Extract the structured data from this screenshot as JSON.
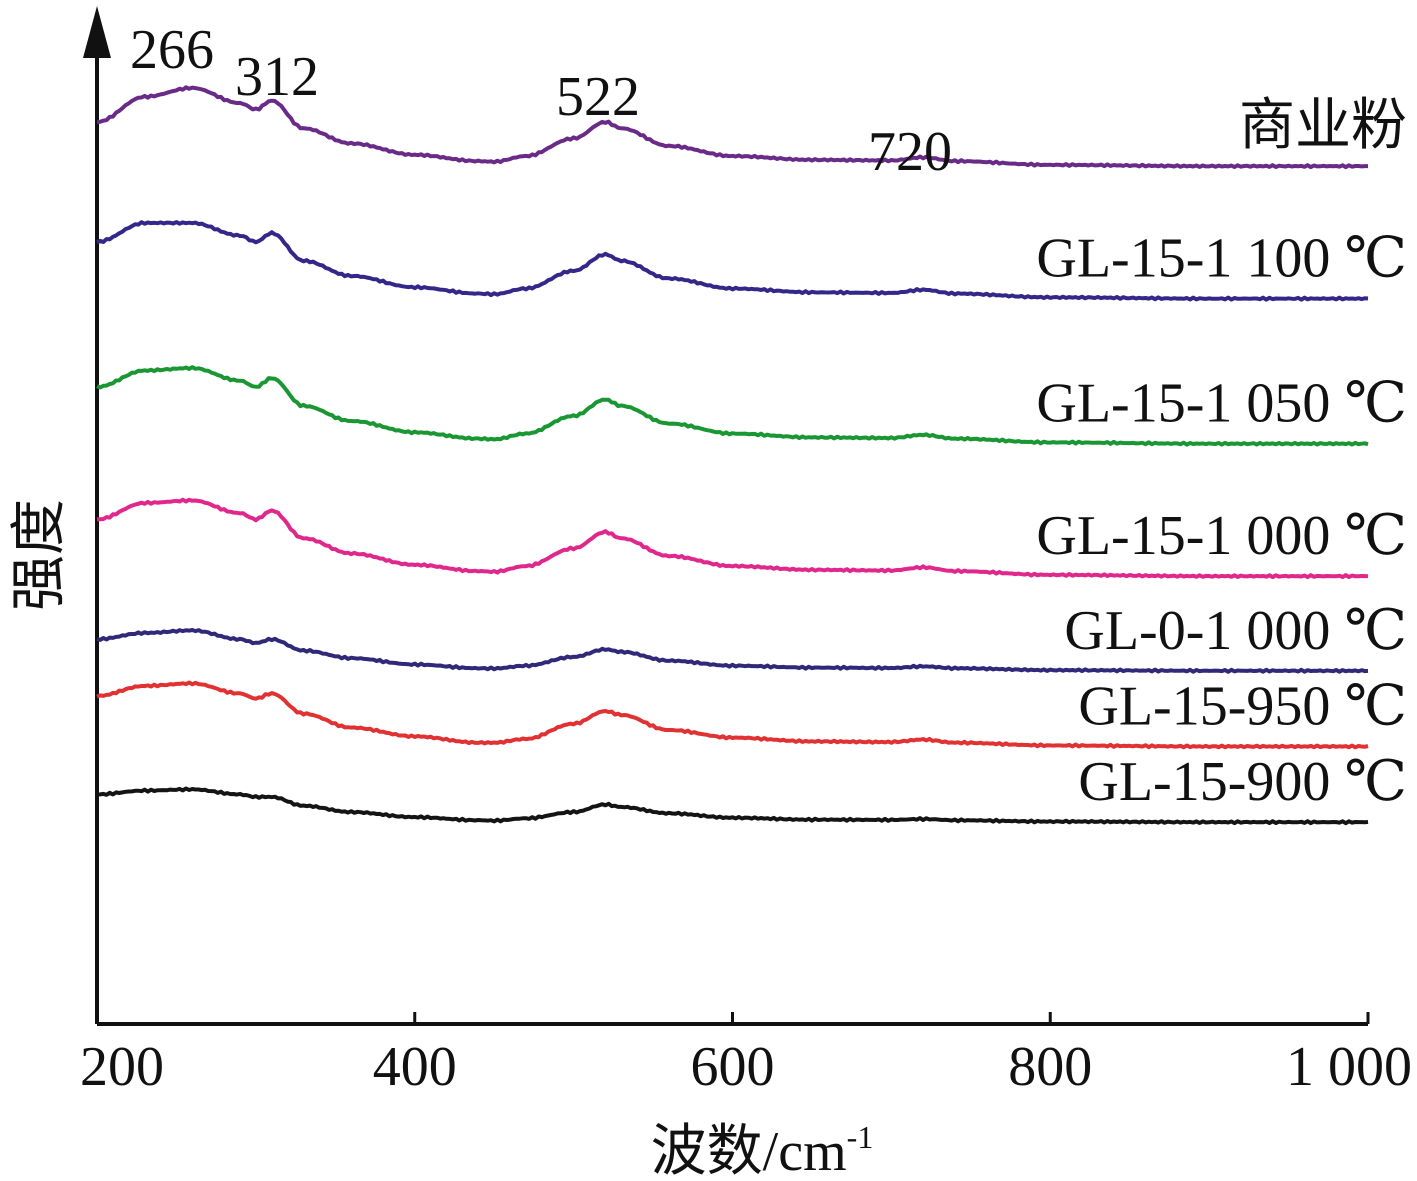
{
  "chart_data": {
    "type": "line",
    "title": "",
    "xlabel": "波数/cm",
    "xlabel_superscript": "-1",
    "ylabel": "强度",
    "xlim": [
      200,
      1000
    ],
    "x_ticks": [
      200,
      400,
      600,
      800,
      1000
    ],
    "x_tick_labels": [
      "200",
      "400",
      "600",
      "800",
      "1 000"
    ],
    "y_ticks_shown": false,
    "grid": false,
    "legend": "labels placed at right end of each stacked curve",
    "peak_annotations": [
      {
        "x": 266,
        "label": "266"
      },
      {
        "x": 312,
        "label": "312"
      },
      {
        "x": 522,
        "label": "522"
      },
      {
        "x": 720,
        "label": "720"
      }
    ],
    "series": [
      {
        "name": "商业粉",
        "color": "#6a2a88",
        "baseline": 6.8,
        "points": [
          [
            200,
            0.35
          ],
          [
            230,
            0.55
          ],
          [
            260,
            0.62
          ],
          [
            290,
            0.5
          ],
          [
            300,
            0.45
          ],
          [
            310,
            0.52
          ],
          [
            330,
            0.3
          ],
          [
            360,
            0.18
          ],
          [
            400,
            0.09
          ],
          [
            440,
            0.04
          ],
          [
            450,
            0.035
          ],
          [
            470,
            0.08
          ],
          [
            500,
            0.22
          ],
          [
            520,
            0.35
          ],
          [
            530,
            0.3
          ],
          [
            560,
            0.16
          ],
          [
            600,
            0.08
          ],
          [
            650,
            0.05
          ],
          [
            700,
            0.045
          ],
          [
            720,
            0.07
          ],
          [
            740,
            0.04
          ],
          [
            800,
            0.01
          ],
          [
            900,
            0.0
          ],
          [
            1000,
            0.0
          ]
        ]
      },
      {
        "name": "GL-15-1 100 ℃",
        "color": "#33288a",
        "baseline": 5.75,
        "points": [
          [
            200,
            0.45
          ],
          [
            230,
            0.6
          ],
          [
            260,
            0.6
          ],
          [
            290,
            0.5
          ],
          [
            300,
            0.45
          ],
          [
            310,
            0.52
          ],
          [
            330,
            0.3
          ],
          [
            360,
            0.18
          ],
          [
            400,
            0.09
          ],
          [
            440,
            0.04
          ],
          [
            450,
            0.035
          ],
          [
            470,
            0.08
          ],
          [
            500,
            0.22
          ],
          [
            520,
            0.35
          ],
          [
            530,
            0.3
          ],
          [
            560,
            0.16
          ],
          [
            600,
            0.08
          ],
          [
            650,
            0.05
          ],
          [
            700,
            0.045
          ],
          [
            720,
            0.07
          ],
          [
            740,
            0.04
          ],
          [
            800,
            0.01
          ],
          [
            900,
            0.0
          ],
          [
            1000,
            0.0
          ]
        ]
      },
      {
        "name": "GL-15-1 050 ℃",
        "color": "#1a9632",
        "baseline": 4.6,
        "points": [
          [
            200,
            0.45
          ],
          [
            230,
            0.58
          ],
          [
            260,
            0.6
          ],
          [
            290,
            0.5
          ],
          [
            300,
            0.45
          ],
          [
            310,
            0.52
          ],
          [
            330,
            0.3
          ],
          [
            360,
            0.18
          ],
          [
            400,
            0.09
          ],
          [
            440,
            0.04
          ],
          [
            450,
            0.035
          ],
          [
            470,
            0.08
          ],
          [
            500,
            0.22
          ],
          [
            520,
            0.35
          ],
          [
            530,
            0.3
          ],
          [
            560,
            0.16
          ],
          [
            600,
            0.08
          ],
          [
            650,
            0.05
          ],
          [
            700,
            0.045
          ],
          [
            720,
            0.07
          ],
          [
            740,
            0.04
          ],
          [
            800,
            0.01
          ],
          [
            900,
            0.0
          ],
          [
            1000,
            0.0
          ]
        ]
      },
      {
        "name": "GL-15-1 000 ℃",
        "color": "#e0288c",
        "baseline": 3.55,
        "points": [
          [
            200,
            0.45
          ],
          [
            230,
            0.58
          ],
          [
            260,
            0.6
          ],
          [
            290,
            0.5
          ],
          [
            300,
            0.45
          ],
          [
            310,
            0.52
          ],
          [
            330,
            0.3
          ],
          [
            360,
            0.18
          ],
          [
            400,
            0.09
          ],
          [
            440,
            0.04
          ],
          [
            450,
            0.035
          ],
          [
            470,
            0.08
          ],
          [
            500,
            0.22
          ],
          [
            520,
            0.35
          ],
          [
            530,
            0.3
          ],
          [
            560,
            0.16
          ],
          [
            600,
            0.08
          ],
          [
            650,
            0.05
          ],
          [
            700,
            0.045
          ],
          [
            720,
            0.07
          ],
          [
            740,
            0.04
          ],
          [
            800,
            0.01
          ],
          [
            900,
            0.0
          ],
          [
            1000,
            0.0
          ]
        ]
      },
      {
        "name": "GL-0-1 000 ℃",
        "color": "#302878",
        "baseline": 2.8,
        "points": [
          [
            200,
            0.25
          ],
          [
            230,
            0.3
          ],
          [
            260,
            0.32
          ],
          [
            290,
            0.25
          ],
          [
            300,
            0.22
          ],
          [
            310,
            0.25
          ],
          [
            330,
            0.16
          ],
          [
            360,
            0.1
          ],
          [
            400,
            0.05
          ],
          [
            440,
            0.02
          ],
          [
            450,
            0.018
          ],
          [
            470,
            0.04
          ],
          [
            500,
            0.11
          ],
          [
            520,
            0.17
          ],
          [
            530,
            0.15
          ],
          [
            560,
            0.08
          ],
          [
            600,
            0.04
          ],
          [
            650,
            0.025
          ],
          [
            700,
            0.022
          ],
          [
            720,
            0.035
          ],
          [
            740,
            0.02
          ],
          [
            800,
            0.005
          ],
          [
            900,
            0.0
          ],
          [
            1000,
            0.0
          ]
        ]
      },
      {
        "name": "GL-15-950 ℃",
        "color": "#e03232",
        "baseline": 2.2,
        "points": [
          [
            200,
            0.4
          ],
          [
            230,
            0.48
          ],
          [
            260,
            0.5
          ],
          [
            290,
            0.42
          ],
          [
            300,
            0.38
          ],
          [
            310,
            0.42
          ],
          [
            330,
            0.26
          ],
          [
            360,
            0.15
          ],
          [
            400,
            0.08
          ],
          [
            440,
            0.03
          ],
          [
            450,
            0.03
          ],
          [
            470,
            0.06
          ],
          [
            500,
            0.18
          ],
          [
            520,
            0.28
          ],
          [
            530,
            0.25
          ],
          [
            560,
            0.13
          ],
          [
            600,
            0.07
          ],
          [
            650,
            0.04
          ],
          [
            700,
            0.035
          ],
          [
            720,
            0.055
          ],
          [
            740,
            0.03
          ],
          [
            800,
            0.008
          ],
          [
            900,
            0.0
          ],
          [
            1000,
            0.0
          ]
        ]
      },
      {
        "name": "GL-15-900 ℃",
        "color": "#141414",
        "baseline": 1.6,
        "points": [
          [
            200,
            0.22
          ],
          [
            230,
            0.25
          ],
          [
            260,
            0.26
          ],
          [
            290,
            0.22
          ],
          [
            300,
            0.2
          ],
          [
            310,
            0.2
          ],
          [
            330,
            0.13
          ],
          [
            360,
            0.08
          ],
          [
            400,
            0.04
          ],
          [
            440,
            0.015
          ],
          [
            450,
            0.012
          ],
          [
            470,
            0.03
          ],
          [
            500,
            0.08
          ],
          [
            520,
            0.14
          ],
          [
            530,
            0.12
          ],
          [
            560,
            0.07
          ],
          [
            600,
            0.035
          ],
          [
            650,
            0.02
          ],
          [
            700,
            0.018
          ],
          [
            720,
            0.025
          ],
          [
            740,
            0.015
          ],
          [
            800,
            0.005
          ],
          [
            900,
            0.0
          ],
          [
            1000,
            0.0
          ]
        ]
      }
    ]
  }
}
